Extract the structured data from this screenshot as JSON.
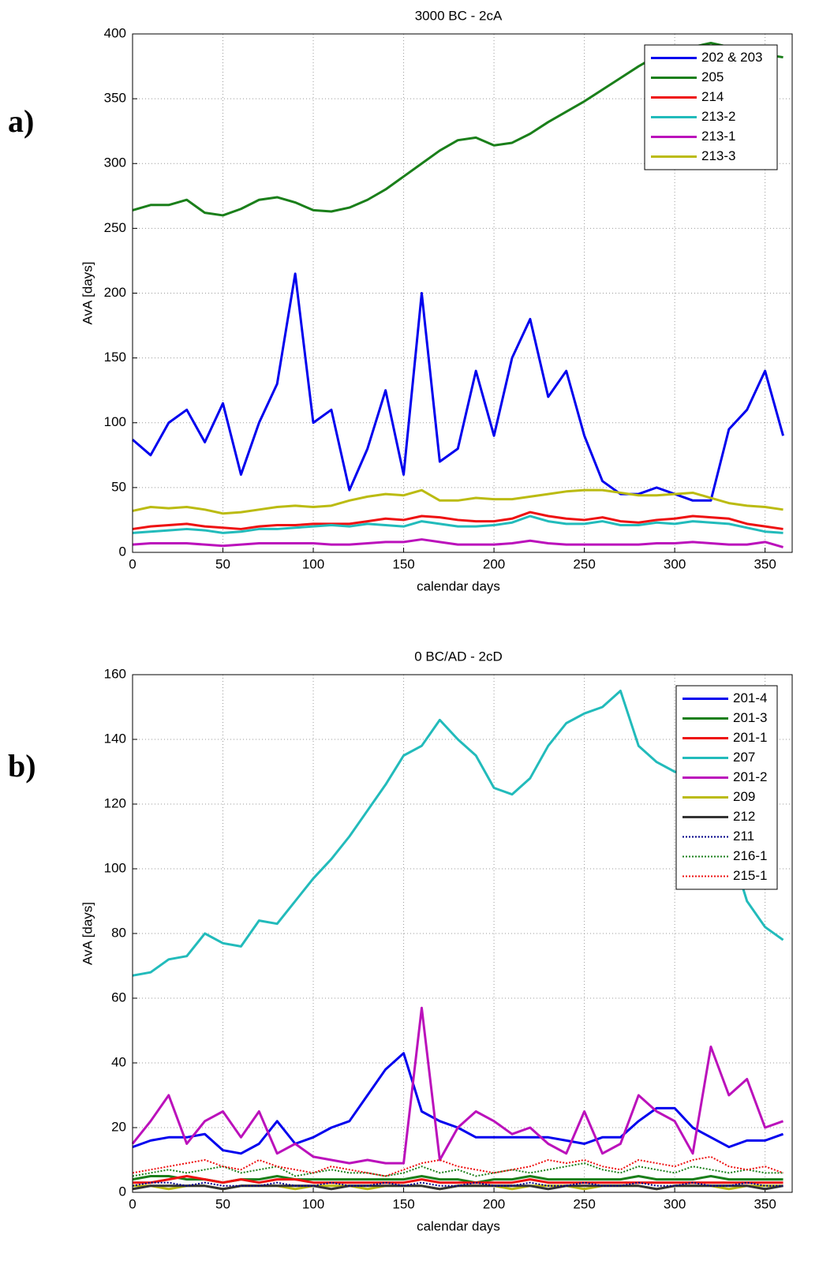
{
  "chart_data": [
    {
      "type": "line",
      "panel_label": "a)",
      "title": "3000 BC - 2cA",
      "xlabel": "calendar days",
      "ylabel": "AvA [days]",
      "xlim": [
        0,
        365
      ],
      "ylim": [
        0,
        400
      ],
      "xticks": [
        0,
        50,
        100,
        150,
        200,
        250,
        300,
        350
      ],
      "yticks": [
        0,
        50,
        100,
        150,
        200,
        250,
        300,
        350,
        400
      ],
      "grid": true,
      "legend": "upper right",
      "x": [
        0,
        10,
        20,
        30,
        40,
        50,
        60,
        70,
        80,
        90,
        100,
        110,
        120,
        130,
        140,
        150,
        160,
        170,
        180,
        190,
        200,
        210,
        220,
        230,
        240,
        250,
        260,
        270,
        280,
        290,
        300,
        310,
        320,
        330,
        340,
        350,
        360
      ],
      "series": [
        {
          "name": "202 & 203",
          "color": "#0000ee",
          "style": "solid",
          "values": [
            87,
            75,
            100,
            110,
            85,
            115,
            60,
            100,
            130,
            215,
            100,
            110,
            48,
            80,
            125,
            60,
            200,
            70,
            80,
            140,
            90,
            150,
            180,
            120,
            140,
            90,
            55,
            45,
            45,
            50,
            45,
            40,
            40,
            95,
            110,
            140,
            90
          ]
        },
        {
          "name": "205",
          "color": "#1a7f1a",
          "style": "solid",
          "values": [
            264,
            268,
            268,
            272,
            262,
            260,
            265,
            272,
            274,
            270,
            264,
            263,
            266,
            272,
            280,
            290,
            300,
            310,
            318,
            320,
            314,
            316,
            323,
            332,
            340,
            348,
            357,
            366,
            375,
            383,
            389,
            390,
            393,
            390,
            387,
            384,
            382
          ]
        },
        {
          "name": "214",
          "color": "#ee1111",
          "style": "solid",
          "values": [
            18,
            20,
            21,
            22,
            20,
            19,
            18,
            20,
            21,
            21,
            22,
            22,
            22,
            24,
            26,
            25,
            28,
            27,
            25,
            24,
            24,
            26,
            31,
            28,
            26,
            25,
            27,
            24,
            23,
            25,
            26,
            28,
            27,
            26,
            22,
            20,
            18
          ]
        },
        {
          "name": "213-2",
          "color": "#22bbbb",
          "style": "solid",
          "values": [
            15,
            16,
            17,
            18,
            17,
            15,
            16,
            18,
            18,
            19,
            20,
            21,
            20,
            22,
            21,
            20,
            24,
            22,
            20,
            20,
            21,
            23,
            28,
            24,
            22,
            22,
            24,
            21,
            21,
            23,
            22,
            24,
            23,
            22,
            19,
            16,
            15
          ]
        },
        {
          "name": "213-1",
          "color": "#bb11bb",
          "style": "solid",
          "values": [
            6,
            7,
            7,
            7,
            6,
            5,
            6,
            7,
            7,
            7,
            7,
            6,
            6,
            7,
            8,
            8,
            10,
            8,
            6,
            6,
            6,
            7,
            9,
            7,
            6,
            6,
            6,
            6,
            6,
            7,
            7,
            8,
            7,
            6,
            6,
            8,
            4
          ]
        },
        {
          "name": "213-3",
          "color": "#bbbb11",
          "style": "solid",
          "values": [
            32,
            35,
            34,
            35,
            33,
            30,
            31,
            33,
            35,
            36,
            35,
            36,
            40,
            43,
            45,
            44,
            48,
            40,
            40,
            42,
            41,
            41,
            43,
            45,
            47,
            48,
            48,
            46,
            44,
            44,
            45,
            46,
            42,
            38,
            36,
            35,
            33
          ]
        }
      ]
    },
    {
      "type": "line",
      "panel_label": "b)",
      "title": "0 BC/AD - 2cD",
      "xlabel": "calendar days",
      "ylabel": "AvA [days]",
      "xlim": [
        0,
        365
      ],
      "ylim": [
        0,
        160
      ],
      "xticks": [
        0,
        50,
        100,
        150,
        200,
        250,
        300,
        350
      ],
      "yticks": [
        0,
        20,
        40,
        60,
        80,
        100,
        120,
        140,
        160
      ],
      "grid": true,
      "legend": "upper right",
      "x": [
        0,
        10,
        20,
        30,
        40,
        50,
        60,
        70,
        80,
        90,
        100,
        110,
        120,
        130,
        140,
        150,
        160,
        170,
        180,
        190,
        200,
        210,
        220,
        230,
        240,
        250,
        260,
        270,
        280,
        290,
        300,
        310,
        320,
        330,
        340,
        350,
        360
      ],
      "series": [
        {
          "name": "201-4",
          "color": "#0000ee",
          "style": "solid",
          "values": [
            14,
            16,
            17,
            17,
            18,
            13,
            12,
            15,
            22,
            15,
            17,
            20,
            22,
            30,
            38,
            43,
            25,
            22,
            20,
            17,
            17,
            17,
            17,
            17,
            16,
            15,
            17,
            17,
            22,
            26,
            26,
            20,
            17,
            14,
            16,
            16,
            18
          ]
        },
        {
          "name": "201-3",
          "color": "#1a7f1a",
          "style": "solid",
          "values": [
            4,
            5,
            5,
            4,
            4,
            3,
            4,
            4,
            5,
            4,
            4,
            4,
            4,
            4,
            4,
            4,
            5,
            4,
            4,
            3,
            4,
            4,
            5,
            4,
            4,
            4,
            4,
            4,
            5,
            4,
            4,
            4,
            5,
            4,
            4,
            4,
            4
          ]
        },
        {
          "name": "201-1",
          "color": "#ee1111",
          "style": "solid",
          "values": [
            3,
            3,
            4,
            5,
            4,
            3,
            4,
            3,
            4,
            4,
            3,
            3,
            3,
            3,
            3,
            3,
            4,
            3,
            3,
            3,
            3,
            3,
            4,
            3,
            3,
            3,
            3,
            3,
            3,
            3,
            3,
            3,
            3,
            3,
            3,
            3,
            3
          ]
        },
        {
          "name": "207",
          "color": "#22bbbb",
          "style": "solid",
          "values": [
            67,
            68,
            72,
            73,
            80,
            77,
            76,
            84,
            83,
            90,
            97,
            103,
            110,
            118,
            126,
            135,
            138,
            146,
            140,
            135,
            125,
            123,
            128,
            138,
            145,
            148,
            150,
            155,
            138,
            133,
            130,
            129,
            123,
            108,
            90,
            82,
            78
          ]
        },
        {
          "name": "201-2",
          "color": "#bb11bb",
          "style": "solid",
          "values": [
            15,
            22,
            30,
            15,
            22,
            25,
            17,
            25,
            12,
            15,
            11,
            10,
            9,
            10,
            9,
            9,
            57,
            10,
            20,
            25,
            22,
            18,
            20,
            15,
            12,
            25,
            12,
            15,
            30,
            25,
            22,
            12,
            45,
            30,
            35,
            20,
            22
          ]
        },
        {
          "name": "209",
          "color": "#bbbb11",
          "style": "solid",
          "values": [
            2,
            2,
            1,
            2,
            2,
            1,
            2,
            2,
            2,
            1,
            2,
            2,
            2,
            1,
            2,
            2,
            2,
            1,
            2,
            2,
            2,
            1,
            2,
            2,
            2,
            1,
            2,
            2,
            2,
            1,
            2,
            2,
            2,
            1,
            2,
            2,
            2
          ]
        },
        {
          "name": "212",
          "color": "#333333",
          "style": "solid",
          "values": [
            1,
            2,
            2,
            2,
            2,
            1,
            2,
            2,
            2,
            2,
            2,
            1,
            2,
            2,
            2,
            2,
            2,
            1,
            2,
            2,
            2,
            2,
            2,
            1,
            2,
            2,
            2,
            2,
            2,
            1,
            2,
            2,
            2,
            2,
            2,
            1,
            2
          ]
        },
        {
          "name": "211",
          "color": "#000088",
          "style": "dotted",
          "values": [
            2,
            3,
            3,
            2,
            3,
            2,
            2,
            2,
            3,
            2,
            2,
            3,
            2,
            2,
            3,
            2,
            3,
            2,
            2,
            3,
            2,
            2,
            3,
            2,
            2,
            3,
            2,
            2,
            3,
            2,
            2,
            3,
            2,
            2,
            3,
            2,
            2
          ]
        },
        {
          "name": "216-1",
          "color": "#1a7f1a",
          "style": "dotted",
          "values": [
            5,
            6,
            7,
            6,
            7,
            8,
            6,
            7,
            8,
            5,
            6,
            7,
            6,
            6,
            5,
            6,
            8,
            6,
            7,
            5,
            6,
            7,
            6,
            7,
            8,
            9,
            7,
            6,
            8,
            7,
            6,
            8,
            7,
            6,
            7,
            6,
            6
          ]
        },
        {
          "name": "215-1",
          "color": "#ee1111",
          "style": "dotted",
          "values": [
            6,
            7,
            8,
            9,
            10,
            8,
            7,
            10,
            8,
            7,
            6,
            8,
            7,
            6,
            5,
            7,
            9,
            10,
            8,
            7,
            6,
            7,
            8,
            10,
            9,
            10,
            8,
            7,
            10,
            9,
            8,
            10,
            11,
            8,
            7,
            8,
            6
          ]
        }
      ]
    }
  ]
}
